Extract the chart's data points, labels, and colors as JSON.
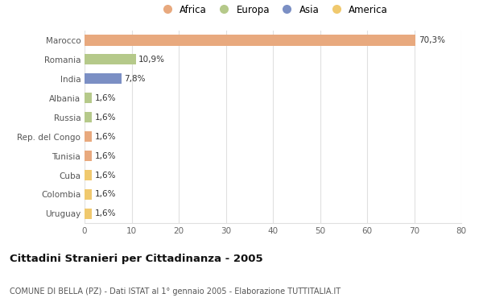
{
  "countries": [
    "Marocco",
    "Romania",
    "India",
    "Albania",
    "Russia",
    "Rep. del Congo",
    "Tunisia",
    "Cuba",
    "Colombia",
    "Uruguay"
  ],
  "values": [
    70.3,
    10.9,
    7.8,
    1.6,
    1.6,
    1.6,
    1.6,
    1.6,
    1.6,
    1.6
  ],
  "labels": [
    "70,3%",
    "10,9%",
    "7,8%",
    "1,6%",
    "1,6%",
    "1,6%",
    "1,6%",
    "1,6%",
    "1,6%",
    "1,6%"
  ],
  "colors": [
    "#e8a97e",
    "#b5c98a",
    "#7b8fc4",
    "#b5c98a",
    "#b5c98a",
    "#e8a97e",
    "#e8a97e",
    "#f0c96e",
    "#f0c96e",
    "#f0c96e"
  ],
  "legend_labels": [
    "Africa",
    "Europa",
    "Asia",
    "America"
  ],
  "legend_colors": [
    "#e8a97e",
    "#b5c98a",
    "#7b8fc4",
    "#f0c96e"
  ],
  "title": "Cittadini Stranieri per Cittadinanza - 2005",
  "subtitle": "COMUNE DI BELLA (PZ) - Dati ISTAT al 1° gennaio 2005 - Elaborazione TUTTITALIA.IT",
  "xlim": [
    0,
    80
  ],
  "xticks": [
    0,
    10,
    20,
    30,
    40,
    50,
    60,
    70,
    80
  ],
  "background_color": "#ffffff",
  "grid_color": "#e0e0e0",
  "bar_height": 0.55
}
